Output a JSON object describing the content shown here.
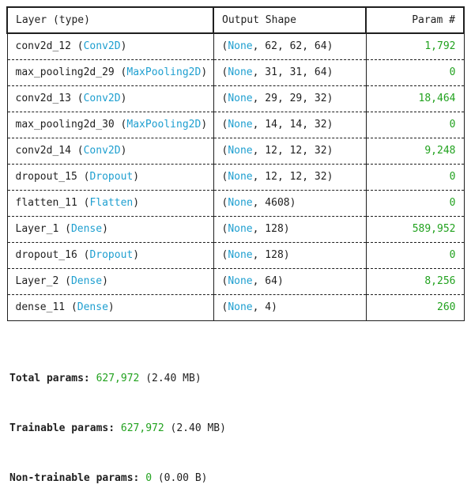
{
  "table": {
    "headers": {
      "layer": "Layer (type)",
      "shape": "Output Shape",
      "param": "Param #"
    },
    "rows": [
      {
        "name": "conv2d_12",
        "type": "Conv2D",
        "shape": [
          "None",
          "62",
          "62",
          "64"
        ],
        "params": "1,792"
      },
      {
        "name": "max_pooling2d_29",
        "type": "MaxPooling2D",
        "shape": [
          "None",
          "31",
          "31",
          "64"
        ],
        "params": "0"
      },
      {
        "name": "conv2d_13",
        "type": "Conv2D",
        "shape": [
          "None",
          "29",
          "29",
          "32"
        ],
        "params": "18,464"
      },
      {
        "name": "max_pooling2d_30",
        "type": "MaxPooling2D",
        "shape": [
          "None",
          "14",
          "14",
          "32"
        ],
        "params": "0"
      },
      {
        "name": "conv2d_14",
        "type": "Conv2D",
        "shape": [
          "None",
          "12",
          "12",
          "32"
        ],
        "params": "9,248"
      },
      {
        "name": "dropout_15",
        "type": "Dropout",
        "shape": [
          "None",
          "12",
          "12",
          "32"
        ],
        "params": "0"
      },
      {
        "name": "flatten_11",
        "type": "Flatten",
        "shape": [
          "None",
          "4608"
        ],
        "params": "0"
      },
      {
        "name": "Layer_1",
        "type": "Dense",
        "shape": [
          "None",
          "128"
        ],
        "params": "589,952"
      },
      {
        "name": "dropout_16",
        "type": "Dropout",
        "shape": [
          "None",
          "128"
        ],
        "params": "0"
      },
      {
        "name": "Layer_2",
        "type": "Dense",
        "shape": [
          "None",
          "64"
        ],
        "params": "8,256"
      },
      {
        "name": "dense_11",
        "type": "Dense",
        "shape": [
          "None",
          "4"
        ],
        "params": "260"
      }
    ]
  },
  "totals": [
    {
      "label": "Total params:",
      "value": "627,972",
      "size": "(2.40 MB)"
    },
    {
      "label": "Trainable params:",
      "value": "627,972",
      "size": "(2.40 MB)"
    },
    {
      "label": "Non-trainable params:",
      "value": "0",
      "size": "(0.00 B)"
    }
  ],
  "colors": {
    "type_name": "#1e9fd0",
    "param_value": "#22a21f",
    "text": "#1f1f1f"
  }
}
